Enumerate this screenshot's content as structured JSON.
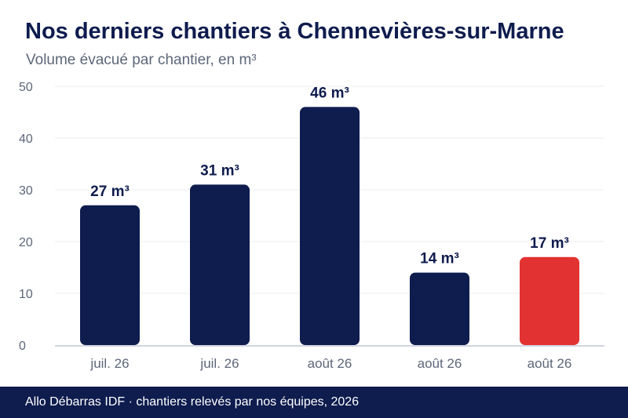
{
  "title": "Nos derniers chantiers à Chennevières-sur-Marne",
  "subtitle": "Volume évacué par chantier, en m³",
  "footer": "Allo Débarras IDF · chantiers relevés par nos équipes, 2026",
  "colors": {
    "bar": "#0e1c4e",
    "highlight": "#e23232",
    "grid": "#ececf0",
    "axis": "#c3c6d6"
  },
  "chart_data": {
    "type": "bar",
    "categories": [
      "juil. 26",
      "juil. 26",
      "août 26",
      "août 26",
      "août 26"
    ],
    "values": [
      27,
      31,
      46,
      14,
      17
    ],
    "data_labels": [
      "27 m³",
      "31 m³",
      "46 m³",
      "14 m³",
      "17 m³"
    ],
    "highlight_index": 4,
    "ylim": [
      0,
      50
    ],
    "yticks": [
      0,
      10,
      20,
      30,
      40,
      50
    ],
    "grid": true
  }
}
